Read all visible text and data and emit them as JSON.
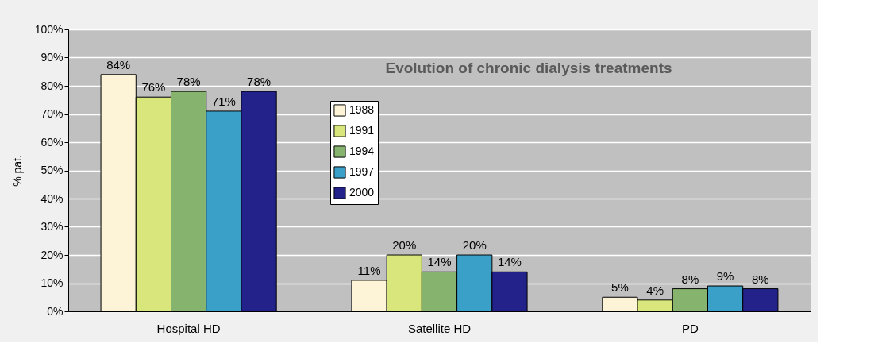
{
  "chart_data": {
    "type": "bar",
    "title": "Evolution of chronic dialysis treatments",
    "ylabel": "% pat.",
    "categories": [
      "Hospital HD",
      "Satellite HD",
      "PD"
    ],
    "series": [
      {
        "name": "1988",
        "color": "#fdf3d6",
        "values": [
          84,
          11,
          5
        ],
        "value_labels": [
          "84%",
          "11%",
          "5%"
        ]
      },
      {
        "name": "1991",
        "color": "#d8e67c",
        "values": [
          76,
          20,
          4
        ],
        "value_labels": [
          "76%",
          "20%",
          "4%"
        ]
      },
      {
        "name": "1994",
        "color": "#86b46e",
        "values": [
          78,
          14,
          8
        ],
        "value_labels": [
          "78%",
          "14%",
          "8%"
        ]
      },
      {
        "name": "1997",
        "color": "#3aa0c8",
        "values": [
          71,
          20,
          9
        ],
        "value_labels": [
          "71%",
          "20%",
          "9%"
        ]
      },
      {
        "name": "2000",
        "color": "#22228a",
        "values": [
          78,
          14,
          8
        ],
        "value_labels": [
          "78%",
          "14%",
          "8%"
        ]
      }
    ],
    "ylim": [
      0,
      100
    ],
    "yticks": [
      {
        "value": 0,
        "label": "0%"
      },
      {
        "value": 10,
        "label": "10%"
      },
      {
        "value": 20,
        "label": "20%"
      },
      {
        "value": 30,
        "label": "30%"
      },
      {
        "value": 40,
        "label": "40%"
      },
      {
        "value": 50,
        "label": "50%"
      },
      {
        "value": 60,
        "label": "60%"
      },
      {
        "value": 70,
        "label": "70%"
      },
      {
        "value": 80,
        "label": "80%"
      },
      {
        "value": 90,
        "label": "90%"
      },
      {
        "value": 100,
        "label": "100%"
      }
    ],
    "grid": "y",
    "legend": "top"
  }
}
